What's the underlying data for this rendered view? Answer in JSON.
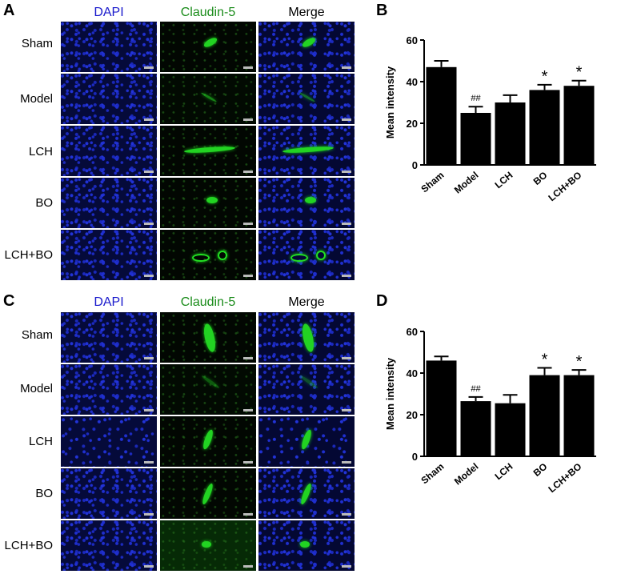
{
  "panels": {
    "A": "A",
    "B": "B",
    "C": "C",
    "D": "D"
  },
  "column_headers": [
    {
      "label": "DAPI",
      "color": "#1a1acc"
    },
    {
      "label": "Claudin-5",
      "color": "#1a8c1a"
    },
    {
      "label": "Merge",
      "color": "#000000"
    }
  ],
  "row_labels": [
    "Sham",
    "Model",
    "LCH",
    "BO",
    "LCH+BO"
  ],
  "colors": {
    "bar": "#000000",
    "dapi": "#1f2fd0",
    "claudin": "#22d322"
  },
  "chart_data": [
    {
      "type": "bar",
      "panel": "B",
      "categories": [
        "Sham",
        "Model",
        "LCH",
        "BO",
        "LCH+BO"
      ],
      "values": [
        47,
        25,
        30,
        36,
        38
      ],
      "errors": [
        3,
        3,
        3.5,
        2.5,
        2.5
      ],
      "annotations": [
        "",
        "##",
        "",
        "*",
        "*"
      ],
      "xlabel": "",
      "ylabel": "Mean intensity",
      "ylim": [
        0,
        60
      ],
      "yticks": [
        0,
        20,
        40,
        60
      ]
    },
    {
      "type": "bar",
      "panel": "D",
      "categories": [
        "Sham",
        "Model",
        "LCH",
        "BO",
        "LCH+BO"
      ],
      "values": [
        46,
        26.5,
        25.5,
        39,
        39
      ],
      "errors": [
        2,
        2,
        4,
        3.5,
        2.5
      ],
      "annotations": [
        "",
        "##",
        "",
        "*",
        "*"
      ],
      "xlabel": "",
      "ylabel": "Mean intensity",
      "ylim": [
        0,
        60
      ],
      "yticks": [
        0,
        20,
        40,
        60
      ]
    }
  ]
}
